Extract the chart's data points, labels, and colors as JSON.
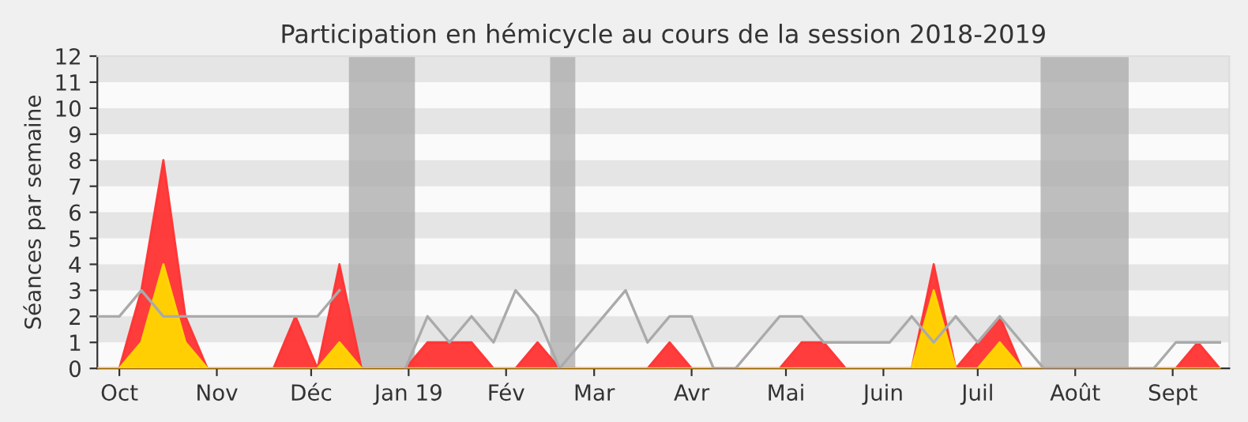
{
  "chart_data": {
    "type": "area",
    "title": "Participation en hémicycle au cours de la session 2018-2019",
    "ylabel": "Séances par semaine",
    "x": [
      "2018-09-24",
      "2018-10-01",
      "2018-10-08",
      "2018-10-15",
      "2018-10-22",
      "2018-10-29",
      "2018-11-05",
      "2018-11-12",
      "2018-11-19",
      "2018-11-26",
      "2018-12-03",
      "2018-12-10",
      "2018-12-17",
      "2018-12-24",
      "2018-12-31",
      "2019-01-07",
      "2019-01-14",
      "2019-01-21",
      "2019-01-28",
      "2019-02-04",
      "2019-02-11",
      "2019-02-18",
      "2019-02-25",
      "2019-03-04",
      "2019-03-11",
      "2019-03-18",
      "2019-03-25",
      "2019-04-01",
      "2019-04-08",
      "2019-04-15",
      "2019-04-22",
      "2019-04-29",
      "2019-05-06",
      "2019-05-13",
      "2019-05-20",
      "2019-05-27",
      "2019-06-03",
      "2019-06-10",
      "2019-06-17",
      "2019-06-24",
      "2019-07-01",
      "2019-07-08",
      "2019-07-15",
      "2019-07-22",
      "2019-07-29",
      "2019-08-05",
      "2019-08-12",
      "2019-08-19",
      "2019-08-26",
      "2019-09-02",
      "2019-09-09",
      "2019-09-16"
    ],
    "series": [
      {
        "type": "line",
        "color": "#aaaaaa",
        "values": [
          2,
          2,
          3,
          2,
          2,
          2,
          2,
          2,
          2,
          2,
          2,
          3,
          null,
          null,
          0,
          2,
          1,
          2,
          1,
          3,
          2,
          0,
          1,
          2,
          3,
          1,
          2,
          2,
          0,
          0,
          1,
          2,
          2,
          1,
          1,
          1,
          1,
          2,
          1,
          2,
          1,
          2,
          1,
          0,
          0,
          0,
          0,
          0,
          0,
          1,
          1,
          1
        ]
      },
      {
        "color": "#ff3333",
        "values": [
          0,
          0,
          3,
          8,
          2,
          0,
          0,
          0,
          0,
          2,
          0,
          4,
          0,
          0,
          0,
          1,
          1,
          1,
          0,
          0,
          1,
          0,
          0,
          0,
          0,
          0,
          1,
          0,
          0,
          0,
          0,
          0,
          1,
          1,
          0,
          0,
          0,
          0,
          4,
          0,
          1,
          2,
          0,
          0,
          0,
          0,
          0,
          0,
          0,
          0,
          1,
          0
        ]
      },
      {
        "color": "#ffd700",
        "values": [
          0,
          0,
          1,
          4,
          1,
          0,
          0,
          0,
          0,
          0,
          0,
          1,
          0,
          0,
          0,
          0,
          0,
          0,
          0,
          0,
          0,
          0,
          0,
          0,
          0,
          0,
          0,
          0,
          0,
          0,
          0,
          0,
          0,
          0,
          0,
          0,
          0,
          0,
          3,
          0,
          0,
          1,
          0,
          0,
          0,
          0,
          0,
          0,
          0,
          0,
          0,
          0
        ]
      }
    ],
    "bands": [
      {
        "axis": "x",
        "from": "2018-12-13",
        "to": "2019-01-03",
        "color": "#aaaaaa"
      },
      {
        "axis": "x",
        "from": "2019-02-15",
        "to": "2019-02-23",
        "color": "#aaaaaa"
      },
      {
        "axis": "x",
        "from": "2019-07-21",
        "to": "2019-08-18",
        "color": "#aaaaaa"
      }
    ],
    "xlim": [
      "2018-09-24",
      "2019-09-19"
    ],
    "xticks": [
      {
        "value": "2018-10-01",
        "label": "Oct"
      },
      {
        "value": "2018-11-01",
        "label": "Nov"
      },
      {
        "value": "2018-12-01",
        "label": "Déc"
      },
      {
        "value": "2019-01-01",
        "label": "Jan 19"
      },
      {
        "value": "2019-02-01",
        "label": "Fév"
      },
      {
        "value": "2019-03-01",
        "label": "Mar"
      },
      {
        "value": "2019-04-01",
        "label": "Avr"
      },
      {
        "value": "2019-05-01",
        "label": "Mai"
      },
      {
        "value": "2019-06-01",
        "label": "Juin"
      },
      {
        "value": "2019-07-01",
        "label": "Juil"
      },
      {
        "value": "2019-08-01",
        "label": "Août"
      },
      {
        "value": "2019-09-01",
        "label": "Sept"
      }
    ],
    "ylim": [
      0,
      12
    ],
    "yticks": [
      0,
      1,
      2,
      3,
      4,
      5,
      6,
      7,
      8,
      9,
      10,
      11,
      12
    ]
  }
}
